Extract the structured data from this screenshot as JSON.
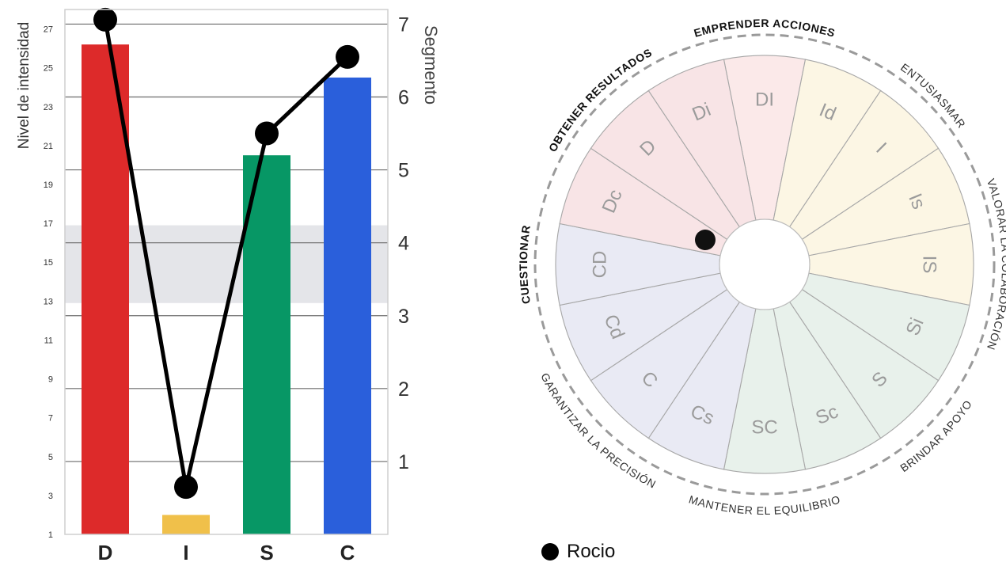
{
  "chart_data": [
    {
      "type": "bar",
      "categories": [
        "D",
        "I",
        "S",
        "C"
      ],
      "values": [
        26.2,
        2.0,
        20.5,
        24.5
      ],
      "bar_colors": [
        "#dd2a2a",
        "#f0c04a",
        "#079765",
        "#2a5fdb"
      ],
      "ylabel": "Nivel de intensidad",
      "ylim": [
        1,
        28
      ],
      "yticks": [
        "1",
        "3",
        "5",
        "7",
        "9",
        "11",
        "13",
        "15",
        "17",
        "19",
        "21",
        "23",
        "25",
        "27"
      ],
      "y2label": "Segmento",
      "y2ticks": [
        "1",
        "2",
        "3",
        "4",
        "5",
        "6",
        "7"
      ],
      "band": [
        12.9,
        16.9
      ],
      "line": {
        "values": [
          7.06,
          0.65,
          5.5,
          6.55
        ],
        "color": "#000000"
      },
      "grid": true
    },
    {
      "type": "diagram",
      "segments": [
        "DI",
        "Id",
        "I",
        "Is",
        "IS",
        "Si",
        "S",
        "Sc",
        "SC",
        "Cs",
        "C",
        "Cd",
        "CD",
        "Dc",
        "D",
        "Di"
      ],
      "segment_colors": [
        "#fbe9e9",
        "#fcf6e4",
        "#fcf6e4",
        "#fcf6e4",
        "#fcf6e4",
        "#e8f1eb",
        "#e8f1eb",
        "#e8f1eb",
        "#e8f1eb",
        "#e9eaf4",
        "#e9eaf4",
        "#e9eaf4",
        "#e9eaf4",
        "#f8e4e6",
        "#f8e4e6",
        "#f8e4e6"
      ],
      "outer_labels": [
        {
          "text": "EMPRENDER ACCIONES",
          "bold": true
        },
        {
          "text": "ENTUSIASMAR",
          "bold": false
        },
        {
          "text": "VALORAR LA COLABORACIÓN",
          "bold": false
        },
        {
          "text": "BRINDAR APOYO",
          "bold": false
        },
        {
          "text": "MANTENER EL EQUILIBRIO",
          "bold": false
        },
        {
          "text": "GARANTIZAR LA PRECISIÓN",
          "bold": false
        },
        {
          "text": "CUESTIONAR",
          "bold": true
        },
        {
          "text": "OBTENER RESULTADOS",
          "bold": true
        }
      ],
      "marker": {
        "angle_deg": 236,
        "radius_frac": 0.31,
        "color": "#111111"
      }
    }
  ],
  "legend": {
    "label": "Rocio",
    "color": "#000000"
  }
}
